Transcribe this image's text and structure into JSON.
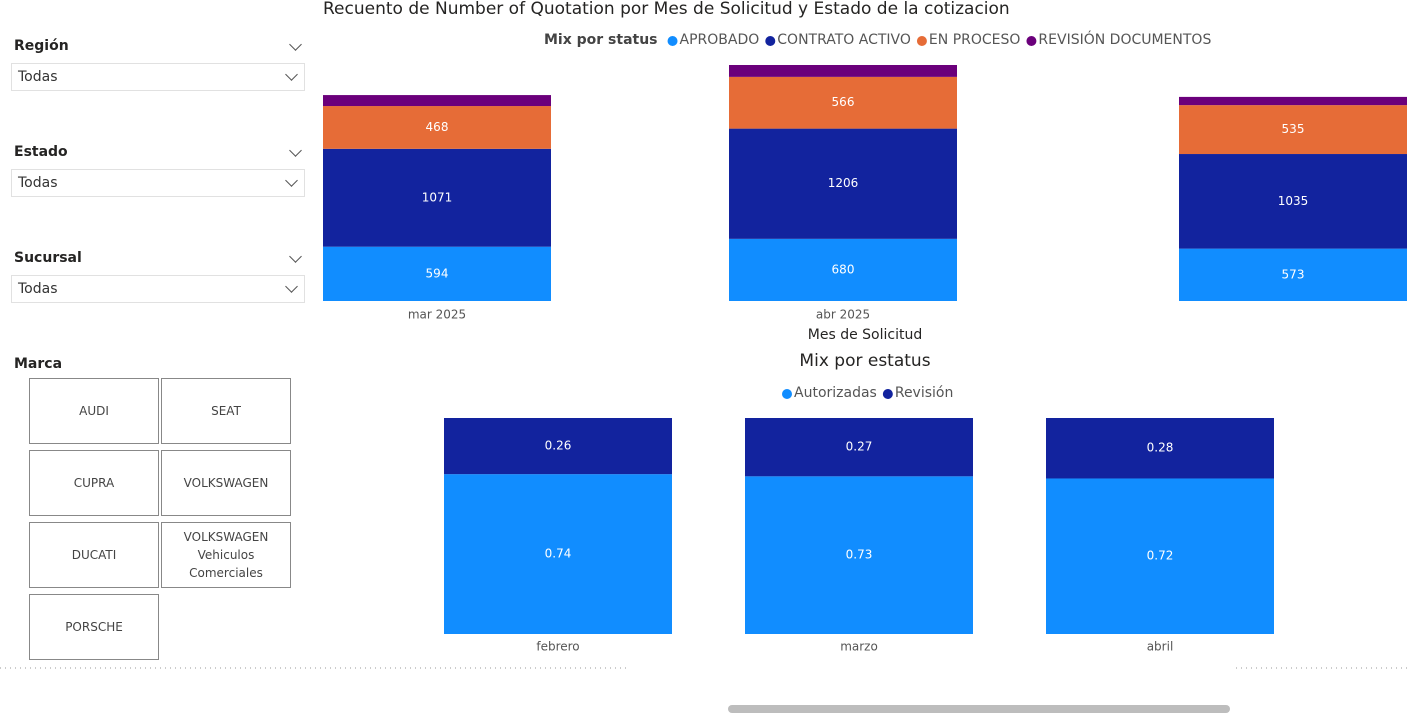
{
  "slicers": [
    {
      "label": "Región",
      "value": "Todas"
    },
    {
      "label": "Estado",
      "value": "Todas"
    },
    {
      "label": "Sucursal",
      "value": "Todas"
    }
  ],
  "marca": {
    "label": "Marca",
    "options": [
      "AUDI",
      "SEAT",
      "CUPRA",
      "VOLKSWAGEN",
      "DUCATI",
      "VOLKSWAGEN Vehiculos Comerciales",
      "PORSCHE"
    ]
  },
  "chart_data": [
    {
      "type": "stacked_bar",
      "title": "Recuento de Number of Quotation por Mes de Solicitud y Estado de la cotizacion",
      "legend_title": "Mix por status",
      "x_label": "Mes de Solicitud",
      "categories": [
        "mar 2025",
        "abr 2025",
        null
      ],
      "series": [
        {
          "name": "APROBADO",
          "color": "#118dff",
          "values": [
            594,
            680,
            573
          ]
        },
        {
          "name": "CONTRATO ACTIVO",
          "color": "#12239e",
          "values": [
            1071,
            1206,
            1035
          ]
        },
        {
          "name": "EN PROCESO",
          "color": "#e66c37",
          "values": [
            468,
            566,
            535
          ]
        },
        {
          "name": "REVISIÓN DOCUMENTOS",
          "color": "#6b007b",
          "values": [
            120,
            130,
            90
          ]
        }
      ]
    },
    {
      "type": "stacked_bar",
      "title": "Mix por estatus",
      "categories": [
        "febrero",
        "marzo",
        "abril"
      ],
      "series": [
        {
          "name": "Autorizadas",
          "color": "#118dff",
          "values": [
            0.74,
            0.73,
            0.72
          ]
        },
        {
          "name": "Revisión",
          "color": "#12239e",
          "values": [
            0.26,
            0.27,
            0.28
          ]
        }
      ]
    }
  ]
}
